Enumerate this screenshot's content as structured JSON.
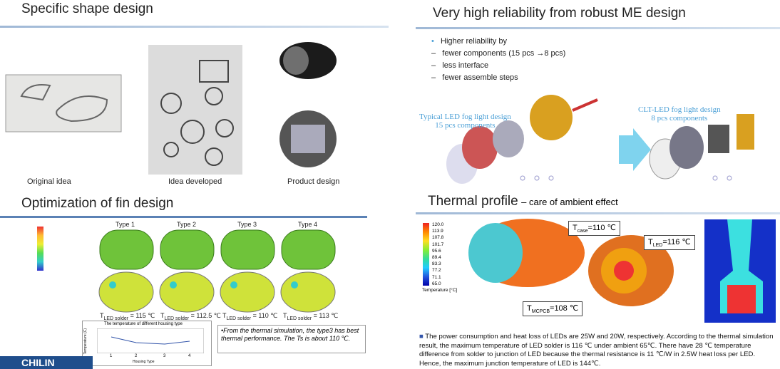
{
  "shape": {
    "title": "Specific shape design",
    "captions": [
      "Original idea",
      "Idea developed",
      "Product design"
    ]
  },
  "reliability": {
    "title": "Very high reliability from robust ME design",
    "bullets": [
      "Higher reliability by",
      "fewer components (15 pcs →8 pcs)",
      "less interface",
      "fewer assemble steps"
    ],
    "typical": [
      "Typical LED fog light design",
      "15 pcs components"
    ],
    "clt": [
      "CLT-LED fog light design",
      "8 pcs components"
    ]
  },
  "fin": {
    "title": "Optimization of  fin design",
    "types": [
      "Type 1",
      "Type 2",
      "Type 3",
      "Type 4"
    ],
    "temps": [
      {
        "main": "T",
        "sub": "LED solder",
        "rest": " = 115 ℃"
      },
      {
        "main": "T",
        "sub": "LED solder",
        "rest": " = 112.5 ℃"
      },
      {
        "main": "T",
        "sub": "LED solder",
        "rest": " = 110 ℃"
      },
      {
        "main": "T",
        "sub": "LED solder",
        "rest": " = 113 ℃"
      }
    ],
    "mini_chart": {
      "title": "The temperature of different housing type",
      "xlabel": "Housing Type",
      "ylabel": "Temperature (C)",
      "categories": [
        "1",
        "2",
        "3",
        "4"
      ]
    },
    "note": "•From the thermal simulation, the type3 has best thermal performance. The Ts is about 110 ℃.",
    "logo": "CHILIN"
  },
  "thermal": {
    "title": "Thermal profile",
    "subtitle": "– care of ambient effect",
    "scale": [
      "120.0",
      "113.9",
      "107.8",
      "101.7",
      "95.6",
      "89.4",
      "83.3",
      "77.2",
      "71.1",
      "65.0"
    ],
    "scale_label": "Temperature [°C]",
    "labels": [
      {
        "main": "T",
        "sub": "case",
        "rest": "=110 ℃"
      },
      {
        "main": "T",
        "sub": "LED",
        "rest": "=116 ℃"
      },
      {
        "main": "T",
        "sub": "MCPCB",
        "rest": "=108 ℃"
      }
    ],
    "paragraph": "The power consumption and heat loss of LEDs are 25W and 20W, respectively. According to the thermal simulation result, the maximum temperature of LED solder is 116 ℃ under ambient 65℃. There have 28 ℃ temperature difference from solder to junction of LED because the thermal resistance is 11 ℃/W in 2.5W heat loss per LED. Hence, the maximum junction temperature of LED is 144℃."
  }
}
